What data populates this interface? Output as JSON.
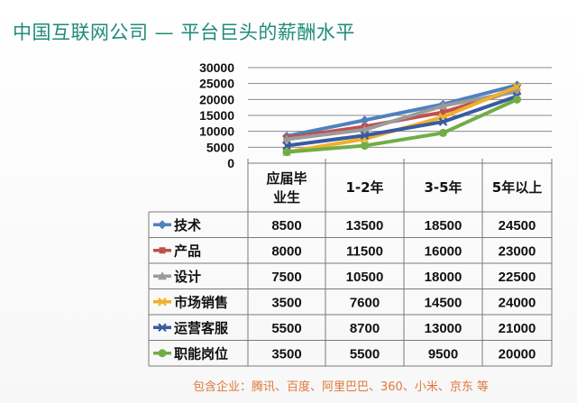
{
  "title": "中国互联网公司 — 平台巨头的薪酬水平",
  "footer": "包含企业：腾讯、百度、阿里巴巴、360、小米、京东 等",
  "chart_data": {
    "type": "line",
    "categories_lines": [
      [
        "应届毕",
        "业生"
      ],
      [
        "1-2年"
      ],
      [
        "3-5年"
      ],
      [
        "5年以上"
      ]
    ],
    "y_ticks": [
      "0",
      "5000",
      "10000",
      "15000",
      "20000",
      "25000",
      "30000"
    ],
    "ylim": [
      0,
      30000
    ],
    "grid": true,
    "legend": "table-left",
    "series": [
      {
        "name": "技术",
        "values": [
          8500,
          13500,
          18500,
          24500
        ],
        "color": "#4f81bd",
        "marker": "diamond"
      },
      {
        "name": "产品",
        "values": [
          8000,
          11500,
          16000,
          23000
        ],
        "color": "#c0504d",
        "marker": "square"
      },
      {
        "name": "设计",
        "values": [
          7500,
          10500,
          18000,
          22500
        ],
        "color": "#9b9b9b",
        "marker": "triangle"
      },
      {
        "name": "市场销售",
        "values": [
          3500,
          7600,
          14500,
          24000
        ],
        "color": "#f0b02a",
        "marker": "x"
      },
      {
        "name": "运营客服",
        "values": [
          5500,
          8700,
          13000,
          21000
        ],
        "color": "#3a5aa0",
        "marker": "x"
      },
      {
        "name": "职能岗位",
        "values": [
          3500,
          5500,
          9500,
          20000
        ],
        "color": "#70ad47",
        "marker": "circle"
      }
    ]
  }
}
